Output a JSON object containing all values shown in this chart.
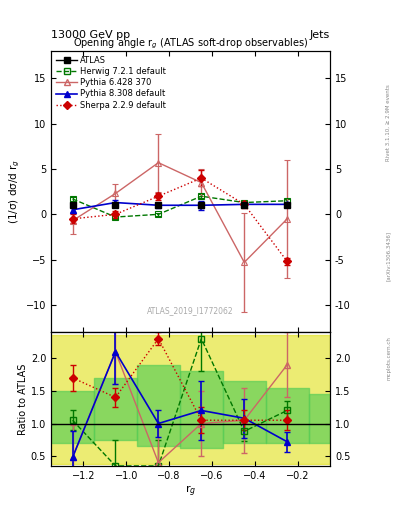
{
  "title_top": "13000 GeV pp",
  "title_right_top": "Jets",
  "plot_title": "Opening angle r$_g$ (ATLAS soft-drop observables)",
  "ylabel_main": "(1/σ) dσ/d r$_g$",
  "ylabel_ratio": "Ratio to ATLAS",
  "xlabel": "r$_g$",
  "watermark": "ATLAS_2019_I1772062",
  "right_label1": "Rivet 3.1.10, ≥ 2.9M events",
  "right_label2": "[arXiv:1306.3436]",
  "right_label3": "mcplots.cern.ch",
  "x_values": [
    -1.25,
    -1.05,
    -0.85,
    -0.65,
    -0.45,
    -0.25
  ],
  "atlas_y": [
    1.0,
    1.0,
    1.0,
    1.0,
    1.0,
    1.0
  ],
  "atlas_yerr": [
    0.15,
    0.15,
    0.15,
    0.15,
    0.15,
    0.15
  ],
  "herwig_y": [
    1.7,
    -0.3,
    0.0,
    2.0,
    1.3,
    1.5
  ],
  "herwig_yerr": [
    0.2,
    0.2,
    0.2,
    0.2,
    0.2,
    0.2
  ],
  "pythia6_y": [
    -0.7,
    2.3,
    5.7,
    3.5,
    -5.3,
    -0.5
  ],
  "pythia6_yerr": [
    1.5,
    1.0,
    3.2,
    1.5,
    5.5,
    6.5
  ],
  "pythia8_y": [
    0.5,
    1.3,
    1.0,
    1.0,
    1.1,
    1.1
  ],
  "pythia8_yerr": [
    0.3,
    0.3,
    0.15,
    0.5,
    0.25,
    0.15
  ],
  "sherpa_y": [
    -0.5,
    0.0,
    2.0,
    4.0,
    1.1,
    -5.2
  ],
  "sherpa_yerr": [
    0.5,
    0.4,
    0.4,
    0.9,
    0.4,
    0.4
  ],
  "ratio_herwig": [
    1.05,
    0.35,
    0.35,
    2.3,
    0.88,
    1.2
  ],
  "ratio_pythia6": [
    0.48,
    2.1,
    0.4,
    1.0,
    1.05,
    1.9
  ],
  "ratio_pythia6_yerr": [
    0.5,
    0.5,
    0.6,
    0.5,
    0.5,
    0.5
  ],
  "ratio_pythia8": [
    0.48,
    2.1,
    1.0,
    1.2,
    1.08,
    0.72
  ],
  "ratio_pythia8_yerr": [
    0.4,
    0.5,
    0.2,
    0.45,
    0.3,
    0.15
  ],
  "ratio_sherpa": [
    1.7,
    1.4,
    2.3,
    1.05,
    1.05,
    1.05
  ],
  "ratio_sherpa_yerr": [
    0.2,
    0.15,
    0.1,
    0.2,
    0.15,
    0.15
  ],
  "ratio_herwig_yerr": [
    0.15,
    0.4,
    0.4,
    0.5,
    0.15,
    0.15
  ],
  "band_x_edges": [
    -1.35,
    -1.15,
    -0.95,
    -0.75,
    -0.55,
    -0.35,
    -0.15,
    -0.05
  ],
  "band_yellow_lo": [
    0.38,
    0.38,
    0.38,
    0.38,
    0.38,
    0.38,
    0.38
  ],
  "band_yellow_hi": [
    2.35,
    2.35,
    2.35,
    2.35,
    2.35,
    2.35,
    2.35
  ],
  "band_green_lo": [
    0.7,
    0.75,
    0.65,
    0.62,
    0.7,
    0.7,
    0.7
  ],
  "band_green_hi": [
    1.5,
    1.7,
    1.9,
    1.8,
    1.65,
    1.55,
    1.45
  ],
  "ylim_main": [
    -13,
    18
  ],
  "ylim_ratio": [
    0.35,
    2.4
  ],
  "yticks_main": [
    -10,
    -5,
    0,
    5,
    10,
    15
  ],
  "yticks_ratio": [
    0.5,
    1.0,
    1.5,
    2.0
  ],
  "xlim": [
    -1.35,
    -0.05
  ],
  "color_atlas": "#000000",
  "color_herwig": "#007700",
  "color_pythia6": "#cc6666",
  "color_pythia8": "#0000cc",
  "color_sherpa": "#cc0000"
}
